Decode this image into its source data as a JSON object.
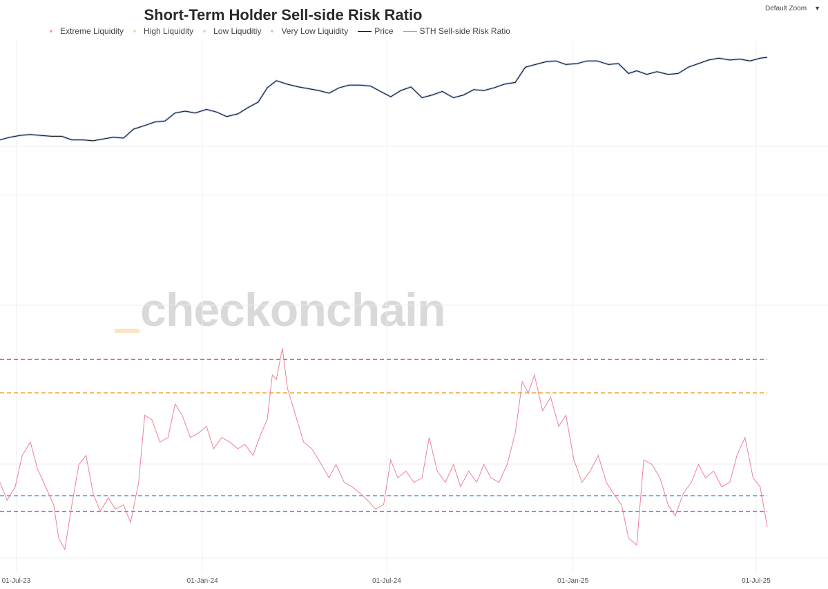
{
  "chart_data": {
    "type": "line",
    "title": "Short-Term Holder Sell-side Risk Ratio",
    "legend": [
      {
        "name": "Extreme Liquidity",
        "color": "#f4a3a8",
        "kind": "dot"
      },
      {
        "name": "High Liquidity",
        "color": "#f7d7a0",
        "kind": "dot"
      },
      {
        "name": "Low Liquditiy",
        "color": "#d8d8d8",
        "kind": "dot"
      },
      {
        "name": "Very Low Liquidity",
        "color": "#d0c8e0",
        "kind": "dot"
      },
      {
        "name": "Price",
        "color": "#111111",
        "kind": "line"
      },
      {
        "name": "STH Sell-side Risk Ratio",
        "color": "#ef7f95",
        "kind": "line"
      }
    ],
    "x_ticks": [
      "01-Jul-23",
      "01-Jan-24",
      "01-Jul-24",
      "01-Jan-25",
      "01-Jul-25"
    ],
    "x_range": [
      "2023-06-15",
      "2025-09-10"
    ],
    "price_series": {
      "name": "Price",
      "color": "#111111",
      "points": [
        [
          "2023-06-15",
          -0.02
        ],
        [
          "2023-06-25",
          0.01
        ],
        [
          "2023-07-05",
          0.03
        ],
        [
          "2023-07-15",
          0.04
        ],
        [
          "2023-07-25",
          0.03
        ],
        [
          "2023-08-05",
          0.02
        ],
        [
          "2023-08-15",
          0.02
        ],
        [
          "2023-08-25",
          -0.02
        ],
        [
          "2023-09-05",
          -0.02
        ],
        [
          "2023-09-15",
          -0.03
        ],
        [
          "2023-09-25",
          -0.01
        ],
        [
          "2023-10-05",
          0.01
        ],
        [
          "2023-10-15",
          0.0
        ],
        [
          "2023-10-25",
          0.1
        ],
        [
          "2023-11-05",
          0.14
        ],
        [
          "2023-11-15",
          0.18
        ],
        [
          "2023-11-25",
          0.19
        ],
        [
          "2023-12-05",
          0.28
        ],
        [
          "2023-12-15",
          0.3
        ],
        [
          "2023-12-25",
          0.28
        ],
        [
          "2024-01-05",
          0.32
        ],
        [
          "2024-01-15",
          0.29
        ],
        [
          "2024-01-25",
          0.24
        ],
        [
          "2024-02-05",
          0.27
        ],
        [
          "2024-02-15",
          0.34
        ],
        [
          "2024-02-25",
          0.4
        ],
        [
          "2024-03-05",
          0.56
        ],
        [
          "2024-03-14",
          0.64
        ],
        [
          "2024-03-25",
          0.6
        ],
        [
          "2024-04-05",
          0.57
        ],
        [
          "2024-04-15",
          0.55
        ],
        [
          "2024-04-25",
          0.53
        ],
        [
          "2024-05-05",
          0.5
        ],
        [
          "2024-05-15",
          0.56
        ],
        [
          "2024-05-25",
          0.59
        ],
        [
          "2024-06-05",
          0.59
        ],
        [
          "2024-06-15",
          0.58
        ],
        [
          "2024-06-25",
          0.52
        ],
        [
          "2024-07-05",
          0.46
        ],
        [
          "2024-07-15",
          0.53
        ],
        [
          "2024-07-25",
          0.57
        ],
        [
          "2024-08-05",
          0.45
        ],
        [
          "2024-08-15",
          0.48
        ],
        [
          "2024-08-25",
          0.52
        ],
        [
          "2024-09-05",
          0.45
        ],
        [
          "2024-09-15",
          0.48
        ],
        [
          "2024-09-25",
          0.54
        ],
        [
          "2024-10-05",
          0.53
        ],
        [
          "2024-10-15",
          0.56
        ],
        [
          "2024-10-25",
          0.6
        ],
        [
          "2024-11-05",
          0.62
        ],
        [
          "2024-11-15",
          0.79
        ],
        [
          "2024-11-25",
          0.82
        ],
        [
          "2024-12-05",
          0.85
        ],
        [
          "2024-12-15",
          0.86
        ],
        [
          "2024-12-25",
          0.82
        ],
        [
          "2025-01-05",
          0.83
        ],
        [
          "2025-01-15",
          0.86
        ],
        [
          "2025-01-25",
          0.86
        ],
        [
          "2025-02-05",
          0.82
        ],
        [
          "2025-02-15",
          0.83
        ],
        [
          "2025-02-25",
          0.72
        ],
        [
          "2025-03-05",
          0.75
        ],
        [
          "2025-03-15",
          0.71
        ],
        [
          "2025-03-25",
          0.74
        ],
        [
          "2025-04-05",
          0.71
        ],
        [
          "2025-04-15",
          0.72
        ],
        [
          "2025-04-25",
          0.79
        ],
        [
          "2025-05-05",
          0.83
        ],
        [
          "2025-05-15",
          0.87
        ],
        [
          "2025-05-25",
          0.89
        ],
        [
          "2025-06-05",
          0.87
        ],
        [
          "2025-06-15",
          0.88
        ],
        [
          "2025-06-25",
          0.86
        ],
        [
          "2025-07-05",
          0.89
        ],
        [
          "2025-07-12",
          0.9
        ]
      ]
    },
    "risk_series": {
      "name": "STH Sell-side Risk Ratio",
      "color": "#ef7f95",
      "points": [
        [
          "2023-06-15",
          0.4
        ],
        [
          "2023-06-22",
          0.32
        ],
        [
          "2023-06-30",
          0.38
        ],
        [
          "2023-07-07",
          0.52
        ],
        [
          "2023-07-15",
          0.58
        ],
        [
          "2023-07-22",
          0.46
        ],
        [
          "2023-07-30",
          0.38
        ],
        [
          "2023-08-07",
          0.3
        ],
        [
          "2023-08-12",
          0.15
        ],
        [
          "2023-08-18",
          0.1
        ],
        [
          "2023-08-25",
          0.3
        ],
        [
          "2023-09-01",
          0.48
        ],
        [
          "2023-09-08",
          0.52
        ],
        [
          "2023-09-15",
          0.35
        ],
        [
          "2023-09-22",
          0.27
        ],
        [
          "2023-09-30",
          0.33
        ],
        [
          "2023-10-07",
          0.28
        ],
        [
          "2023-10-15",
          0.3
        ],
        [
          "2023-10-22",
          0.22
        ],
        [
          "2023-10-30",
          0.4
        ],
        [
          "2023-11-05",
          0.7
        ],
        [
          "2023-11-12",
          0.68
        ],
        [
          "2023-11-20",
          0.58
        ],
        [
          "2023-11-28",
          0.6
        ],
        [
          "2023-12-05",
          0.75
        ],
        [
          "2023-12-12",
          0.7
        ],
        [
          "2023-12-20",
          0.6
        ],
        [
          "2023-12-28",
          0.62
        ],
        [
          "2024-01-05",
          0.65
        ],
        [
          "2024-01-12",
          0.55
        ],
        [
          "2024-01-20",
          0.6
        ],
        [
          "2024-01-28",
          0.58
        ],
        [
          "2024-02-05",
          0.55
        ],
        [
          "2024-02-12",
          0.57
        ],
        [
          "2024-02-20",
          0.52
        ],
        [
          "2024-02-28",
          0.62
        ],
        [
          "2024-03-05",
          0.68
        ],
        [
          "2024-03-10",
          0.88
        ],
        [
          "2024-03-14",
          0.86
        ],
        [
          "2024-03-20",
          1.0
        ],
        [
          "2024-03-25",
          0.82
        ],
        [
          "2024-04-02",
          0.7
        ],
        [
          "2024-04-10",
          0.58
        ],
        [
          "2024-04-18",
          0.55
        ],
        [
          "2024-04-25",
          0.5
        ],
        [
          "2024-05-05",
          0.42
        ],
        [
          "2024-05-12",
          0.48
        ],
        [
          "2024-05-20",
          0.4
        ],
        [
          "2024-05-28",
          0.38
        ],
        [
          "2024-06-05",
          0.35
        ],
        [
          "2024-06-12",
          0.32
        ],
        [
          "2024-06-20",
          0.28
        ],
        [
          "2024-06-28",
          0.3
        ],
        [
          "2024-07-05",
          0.5
        ],
        [
          "2024-07-12",
          0.42
        ],
        [
          "2024-07-20",
          0.45
        ],
        [
          "2024-07-28",
          0.4
        ],
        [
          "2024-08-05",
          0.42
        ],
        [
          "2024-08-12",
          0.6
        ],
        [
          "2024-08-20",
          0.45
        ],
        [
          "2024-08-28",
          0.4
        ],
        [
          "2024-09-05",
          0.48
        ],
        [
          "2024-09-12",
          0.38
        ],
        [
          "2024-09-20",
          0.45
        ],
        [
          "2024-09-28",
          0.4
        ],
        [
          "2024-10-05",
          0.48
        ],
        [
          "2024-10-12",
          0.42
        ],
        [
          "2024-10-20",
          0.4
        ],
        [
          "2024-10-28",
          0.48
        ],
        [
          "2024-11-05",
          0.62
        ],
        [
          "2024-11-12",
          0.85
        ],
        [
          "2024-11-18",
          0.8
        ],
        [
          "2024-11-24",
          0.88
        ],
        [
          "2024-12-02",
          0.72
        ],
        [
          "2024-12-10",
          0.78
        ],
        [
          "2024-12-18",
          0.65
        ],
        [
          "2024-12-25",
          0.7
        ],
        [
          "2025-01-02",
          0.5
        ],
        [
          "2025-01-10",
          0.4
        ],
        [
          "2025-01-18",
          0.45
        ],
        [
          "2025-01-26",
          0.52
        ],
        [
          "2025-02-03",
          0.4
        ],
        [
          "2025-02-10",
          0.35
        ],
        [
          "2025-02-18",
          0.3
        ],
        [
          "2025-02-25",
          0.15
        ],
        [
          "2025-03-05",
          0.12
        ],
        [
          "2025-03-12",
          0.5
        ],
        [
          "2025-03-20",
          0.48
        ],
        [
          "2025-03-28",
          0.42
        ],
        [
          "2025-04-05",
          0.3
        ],
        [
          "2025-04-12",
          0.25
        ],
        [
          "2025-04-20",
          0.35
        ],
        [
          "2025-04-28",
          0.4
        ],
        [
          "2025-05-05",
          0.48
        ],
        [
          "2025-05-12",
          0.42
        ],
        [
          "2025-05-20",
          0.45
        ],
        [
          "2025-05-28",
          0.38
        ],
        [
          "2025-06-05",
          0.4
        ],
        [
          "2025-06-12",
          0.52
        ],
        [
          "2025-06-20",
          0.6
        ],
        [
          "2025-06-28",
          0.42
        ],
        [
          "2025-07-05",
          0.38
        ],
        [
          "2025-07-12",
          0.2
        ]
      ]
    },
    "threshold_lines": [
      {
        "value": 0.95,
        "color": "#e9546b"
      },
      {
        "value": 0.8,
        "color": "#f0a02c"
      },
      {
        "value": 0.34,
        "color": "#4a90d9"
      },
      {
        "value": 0.27,
        "color": "#8a6ad6"
      }
    ],
    "risk_ylim": [
      0.0,
      1.05
    ],
    "grid": true,
    "legend_position": "top"
  },
  "controls": {
    "zoom_label": "Default Zoom",
    "zoom_caret": "▼"
  },
  "watermark": "checkonchain"
}
